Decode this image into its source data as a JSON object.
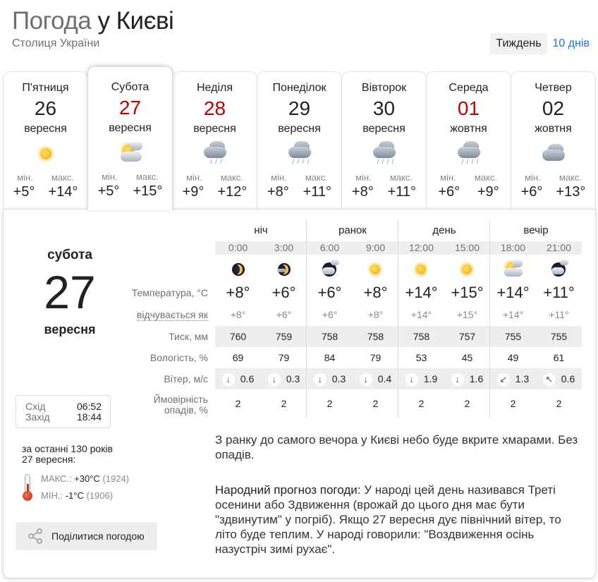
{
  "header": {
    "title_part1": "Погода",
    "title_part2": "у Києві",
    "subtitle": "Столиця України",
    "tab_week": "Тиждень",
    "tab_10days": "10 днів"
  },
  "days": [
    {
      "name": "П'ятниця",
      "date": "26",
      "month": "вересня",
      "weekend": false,
      "icon": "sun-icon",
      "min_label": "мін.",
      "max_label": "макс.",
      "min": "+5°",
      "max": "+14°"
    },
    {
      "name": "Субота",
      "date": "27",
      "month": "вересня",
      "weekend": true,
      "icon": "partly-cloudy-icon",
      "min_label": "мін.",
      "max_label": "макс.",
      "min": "+5°",
      "max": "+15°"
    },
    {
      "name": "Неділя",
      "date": "28",
      "month": "вересня",
      "weekend": true,
      "icon": "cloud-drizzle-icon",
      "min_label": "мін.",
      "max_label": "макс.",
      "min": "+9°",
      "max": "+12°"
    },
    {
      "name": "Понеділок",
      "date": "29",
      "month": "вересня",
      "weekend": false,
      "icon": "cloud-rain-icon",
      "min_label": "мін.",
      "max_label": "макс.",
      "min": "+8°",
      "max": "+11°"
    },
    {
      "name": "Вівторок",
      "date": "30",
      "month": "вересня",
      "weekend": false,
      "icon": "cloud-rain-icon",
      "min_label": "мін.",
      "max_label": "макс.",
      "min": "+8°",
      "max": "+11°"
    },
    {
      "name": "Середа",
      "date": "01",
      "month": "жовтня",
      "weekend": true,
      "icon": "cloud-rain-icon",
      "min_label": "мін.",
      "max_label": "макс.",
      "min": "+6°",
      "max": "+9°"
    },
    {
      "name": "Четвер",
      "date": "02",
      "month": "жовтня",
      "weekend": false,
      "icon": "cloudy-icon",
      "min_label": "мін.",
      "max_label": "макс.",
      "min": "+6°",
      "max": "+13°"
    }
  ],
  "selected": {
    "weekday": "субота",
    "date": "27",
    "month": "вересня",
    "sunrise_label": "Схід",
    "sunrise": "06:52",
    "sunset_label": "Захід",
    "sunset": "18:44",
    "history_title": "за останні 130 років",
    "history_date": "27 вересня:",
    "max_label": "МАКС.:",
    "max_value": "+30°C",
    "max_year": "(1924)",
    "min_label": "МІН.:",
    "min_value": "-1°C",
    "min_year": "(1906)",
    "share_label": "Поділитися погодою"
  },
  "table": {
    "periods": [
      "ніч",
      "ранок",
      "день",
      "вечір"
    ],
    "labels": {
      "temp": "Температура, °C",
      "feels": "відчувається як",
      "pressure": "Тиск, мм",
      "humidity": "Вологість, %",
      "wind": "Вітер, м/с",
      "precip": "Ймовірність опадів, %"
    },
    "hours": [
      {
        "time": "0:00",
        "icon": "moon-icon",
        "temp": "+8°",
        "feels": "+8°",
        "pressure": "760",
        "humidity": "69",
        "wind_dir": "↓",
        "wind": "0.6",
        "precip": "2"
      },
      {
        "time": "3:00",
        "icon": "moon-cloud-icon",
        "temp": "+6°",
        "feels": "+6°",
        "pressure": "759",
        "humidity": "79",
        "wind_dir": "↓",
        "wind": "0.3",
        "precip": "2"
      },
      {
        "time": "6:00",
        "icon": "night-cloudy-icon",
        "temp": "+6°",
        "feels": "+6°",
        "pressure": "758",
        "humidity": "84",
        "wind_dir": "↓",
        "wind": "0.3",
        "precip": "2"
      },
      {
        "time": "9:00",
        "icon": "sun-icon",
        "temp": "+8°",
        "feels": "+8°",
        "pressure": "758",
        "humidity": "79",
        "wind_dir": "↓",
        "wind": "0.4",
        "precip": "2"
      },
      {
        "time": "12:00",
        "icon": "sun-icon",
        "temp": "+14°",
        "feels": "+14°",
        "pressure": "758",
        "humidity": "53",
        "wind_dir": "↓",
        "wind": "1.9",
        "precip": "2"
      },
      {
        "time": "15:00",
        "icon": "sun-icon",
        "temp": "+15°",
        "feels": "+15°",
        "pressure": "757",
        "humidity": "45",
        "wind_dir": "↓",
        "wind": "1.6",
        "precip": "2"
      },
      {
        "time": "18:00",
        "icon": "partly-cloudy-icon",
        "temp": "+14°",
        "feels": "+14°",
        "pressure": "755",
        "humidity": "49",
        "wind_dir": "↙",
        "wind": "1.3",
        "precip": "2"
      },
      {
        "time": "21:00",
        "icon": "night-cloudy-icon",
        "temp": "+11°",
        "feels": "+11°",
        "pressure": "755",
        "humidity": "61",
        "wind_dir": "↖",
        "wind": "0.6",
        "precip": "2"
      }
    ]
  },
  "description": "З ранку до самого вечора у Києві небо буде вкрите хмарами. Без опадів.",
  "folk": {
    "label": "Народний прогноз погоди:",
    "text": "У народі цей день називався Треті осенини або Здвиження (врожай до цього дня має бути \"здвинутим\" у погріб). Якщо 27 вересня дує північний вітер, то літо буде теплим. У народі говорили: \"Воздвиження осінь назустріч зимі рухає\"."
  },
  "colors": {
    "weekend": "#c00000",
    "link": "#1a73e8"
  }
}
